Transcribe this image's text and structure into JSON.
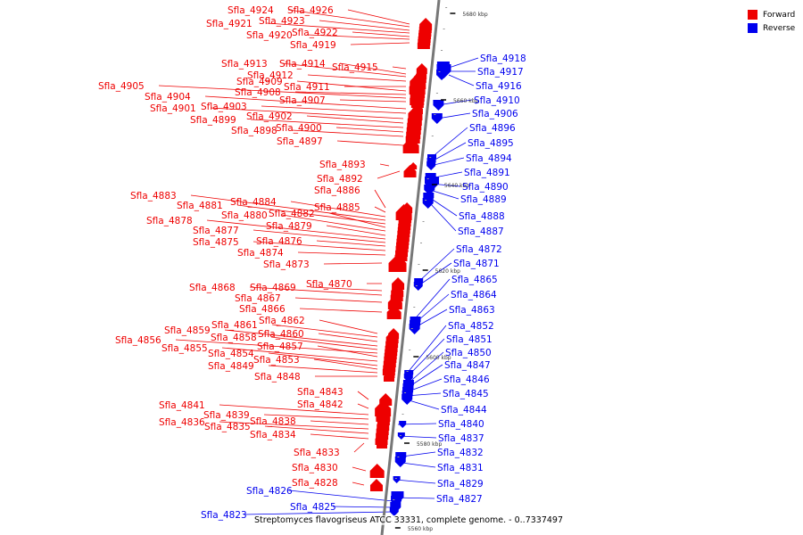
{
  "legend": {
    "forward_label": "Forward",
    "reverse_label": "Reverse",
    "forward_color": "#ee0000",
    "reverse_color": "#0000ee"
  },
  "caption": "Streptomyces flavogriseus ATCC 33331, complete genome. - 0..7337497",
  "scale_ticks": [
    "5680 kbp",
    "5660 kbp",
    "5640 kbp",
    "5620 kbp",
    "5600 kbp",
    "5580 kbp",
    "5560 kbp"
  ],
  "forward_genes": [
    "Sfla_4926",
    "Sfla_4924",
    "Sfla_4923",
    "Sfla_4921",
    "Sfla_4922",
    "Sfla_4920",
    "Sfla_4919",
    "Sfla_4915",
    "Sfla_4914",
    "Sfla_4913",
    "Sfla_4912",
    "Sfla_4911",
    "Sfla_4909",
    "Sfla_4908",
    "Sfla_4905",
    "Sfla_4907",
    "Sfla_4904",
    "Sfla_4903",
    "Sfla_4901",
    "Sfla_4902",
    "Sfla_4899",
    "Sfla_4900",
    "Sfla_4898",
    "Sfla_4897",
    "Sfla_4893",
    "Sfla_4892",
    "Sfla_4886",
    "Sfla_4885",
    "Sfla_4884",
    "Sfla_4883",
    "Sfla_4881",
    "Sfla_4882",
    "Sfla_4880",
    "Sfla_4879",
    "Sfla_4878",
    "Sfla_4877",
    "Sfla_4876",
    "Sfla_4875",
    "Sfla_4874",
    "Sfla_4873",
    "Sfla_4870",
    "Sfla_4869",
    "Sfla_4868",
    "Sfla_4867",
    "Sfla_4866",
    "Sfla_4862",
    "Sfla_4861",
    "Sfla_4860",
    "Sfla_4859",
    "Sfla_4858",
    "Sfla_4856",
    "Sfla_4857",
    "Sfla_4855",
    "Sfla_4854",
    "Sfla_4853",
    "Sfla_4849",
    "Sfla_4848",
    "Sfla_4843",
    "Sfla_4842",
    "Sfla_4841",
    "Sfla_4839",
    "Sfla_4838",
    "Sfla_4836",
    "Sfla_4835",
    "Sfla_4834",
    "Sfla_4833",
    "Sfla_4830",
    "Sfla_4828"
  ],
  "reverse_genes": [
    "Sfla_4918",
    "Sfla_4917",
    "Sfla_4916",
    "Sfla_4910",
    "Sfla_4906",
    "Sfla_4896",
    "Sfla_4895",
    "Sfla_4894",
    "Sfla_4891",
    "Sfla_4890",
    "Sfla_4889",
    "Sfla_4888",
    "Sfla_4887",
    "Sfla_4872",
    "Sfla_4871",
    "Sfla_4865",
    "Sfla_4864",
    "Sfla_4863",
    "Sfla_4852",
    "Sfla_4851",
    "Sfla_4850",
    "Sfla_4847",
    "Sfla_4846",
    "Sfla_4845",
    "Sfla_4844",
    "Sfla_4840",
    "Sfla_4837",
    "Sfla_4832",
    "Sfla_4831",
    "Sfla_4829",
    "Sfla_4827",
    "Sfla_4826",
    "Sfla_4825",
    "Sfla_4823"
  ]
}
